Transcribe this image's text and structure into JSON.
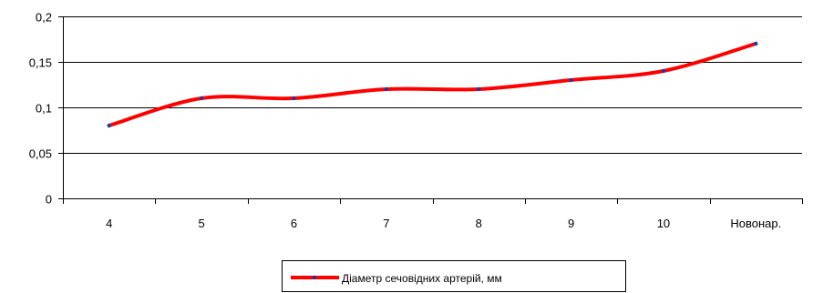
{
  "chart_data": {
    "type": "line",
    "categories": [
      "4",
      "5",
      "6",
      "7",
      "8",
      "9",
      "10",
      "Новонар."
    ],
    "series": [
      {
        "name": "Діаметр сечовідних артерій, мм",
        "values": [
          0.08,
          0.11,
          0.11,
          0.12,
          0.12,
          0.13,
          0.14,
          0.17
        ],
        "line_color": "#ff0000",
        "marker_color": "#1f3a9e"
      }
    ],
    "ylim": [
      0,
      0.2
    ],
    "y_ticks": [
      {
        "value": 0,
        "label": "0"
      },
      {
        "value": 0.05,
        "label": "0,05"
      },
      {
        "value": 0.1,
        "label": "0,1"
      },
      {
        "value": 0.15,
        "label": "0,15"
      },
      {
        "value": 0.2,
        "label": "0,2"
      }
    ],
    "grid": true,
    "legend_position": "bottom-center",
    "smooth": true
  }
}
